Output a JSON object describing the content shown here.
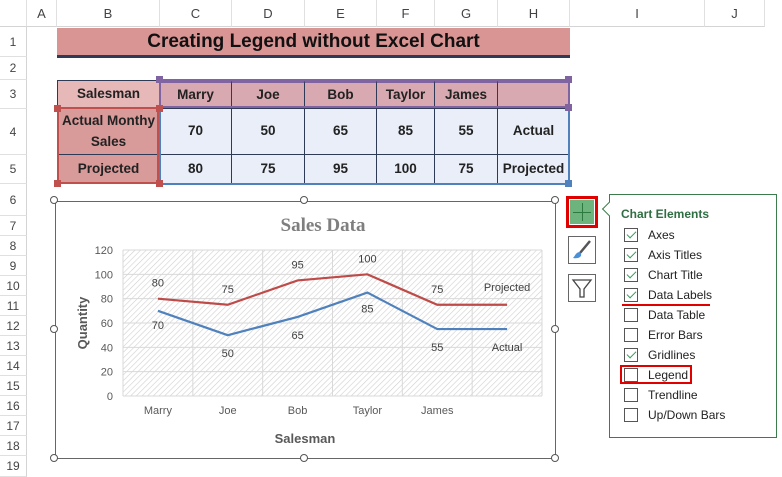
{
  "columns": [
    "A",
    "B",
    "C",
    "D",
    "E",
    "F",
    "G",
    "H",
    "I",
    "J"
  ],
  "rows": [
    "1",
    "2",
    "3",
    "4",
    "5",
    "6",
    "7",
    "8",
    "9",
    "10",
    "11",
    "12",
    "13",
    "14",
    "15",
    "16",
    "17",
    "18",
    "19"
  ],
  "sheet_title": "Creating Legend without Excel Chart",
  "table": {
    "header": [
      "Salesman",
      "Marry",
      "Joe",
      "Bob",
      "Taylor",
      "James",
      ""
    ],
    "rows": [
      {
        "label": "Actual Monthy Sales",
        "values": [
          "70",
          "50",
          "65",
          "85",
          "55",
          "Actual"
        ]
      },
      {
        "label": "Projected",
        "values": [
          "80",
          "75",
          "95",
          "100",
          "75",
          "Projected"
        ]
      }
    ]
  },
  "chart_data": {
    "type": "line",
    "title": "Sales Data",
    "xlabel": "Salesman",
    "ylabel": "Quantity",
    "categories": [
      "Marry",
      "Joe",
      "Bob",
      "Taylor",
      "James",
      ""
    ],
    "ylim": [
      0,
      120
    ],
    "yticks": [
      "0",
      "20",
      "40",
      "60",
      "80",
      "100",
      "120"
    ],
    "grid": true,
    "legend": "none",
    "series": [
      {
        "name": "Projected",
        "values": [
          80,
          75,
          95,
          100,
          75,
          75
        ],
        "labels": [
          "80",
          "75",
          "95",
          "100",
          "75",
          "Projected"
        ],
        "color": "#be4b48"
      },
      {
        "name": "Actual",
        "values": [
          70,
          50,
          65,
          85,
          55,
          55
        ],
        "labels": [
          "70",
          "50",
          "65",
          "85",
          "55",
          "Actual"
        ],
        "color": "#4f81bd"
      }
    ]
  },
  "chart_elements": {
    "title": "Chart Elements",
    "items": [
      {
        "label": "Axes",
        "checked": true
      },
      {
        "label": "Axis Titles",
        "checked": true
      },
      {
        "label": "Chart Title",
        "checked": true
      },
      {
        "label": "Data Labels",
        "checked": true
      },
      {
        "label": "Data Table",
        "checked": false
      },
      {
        "label": "Error Bars",
        "checked": false
      },
      {
        "label": "Gridlines",
        "checked": true
      },
      {
        "label": "Legend",
        "checked": false
      },
      {
        "label": "Trendline",
        "checked": false
      },
      {
        "label": "Up/Down Bars",
        "checked": false
      }
    ]
  },
  "colors": {
    "highlight": "#e00000",
    "accent": "#3d7c4c"
  }
}
